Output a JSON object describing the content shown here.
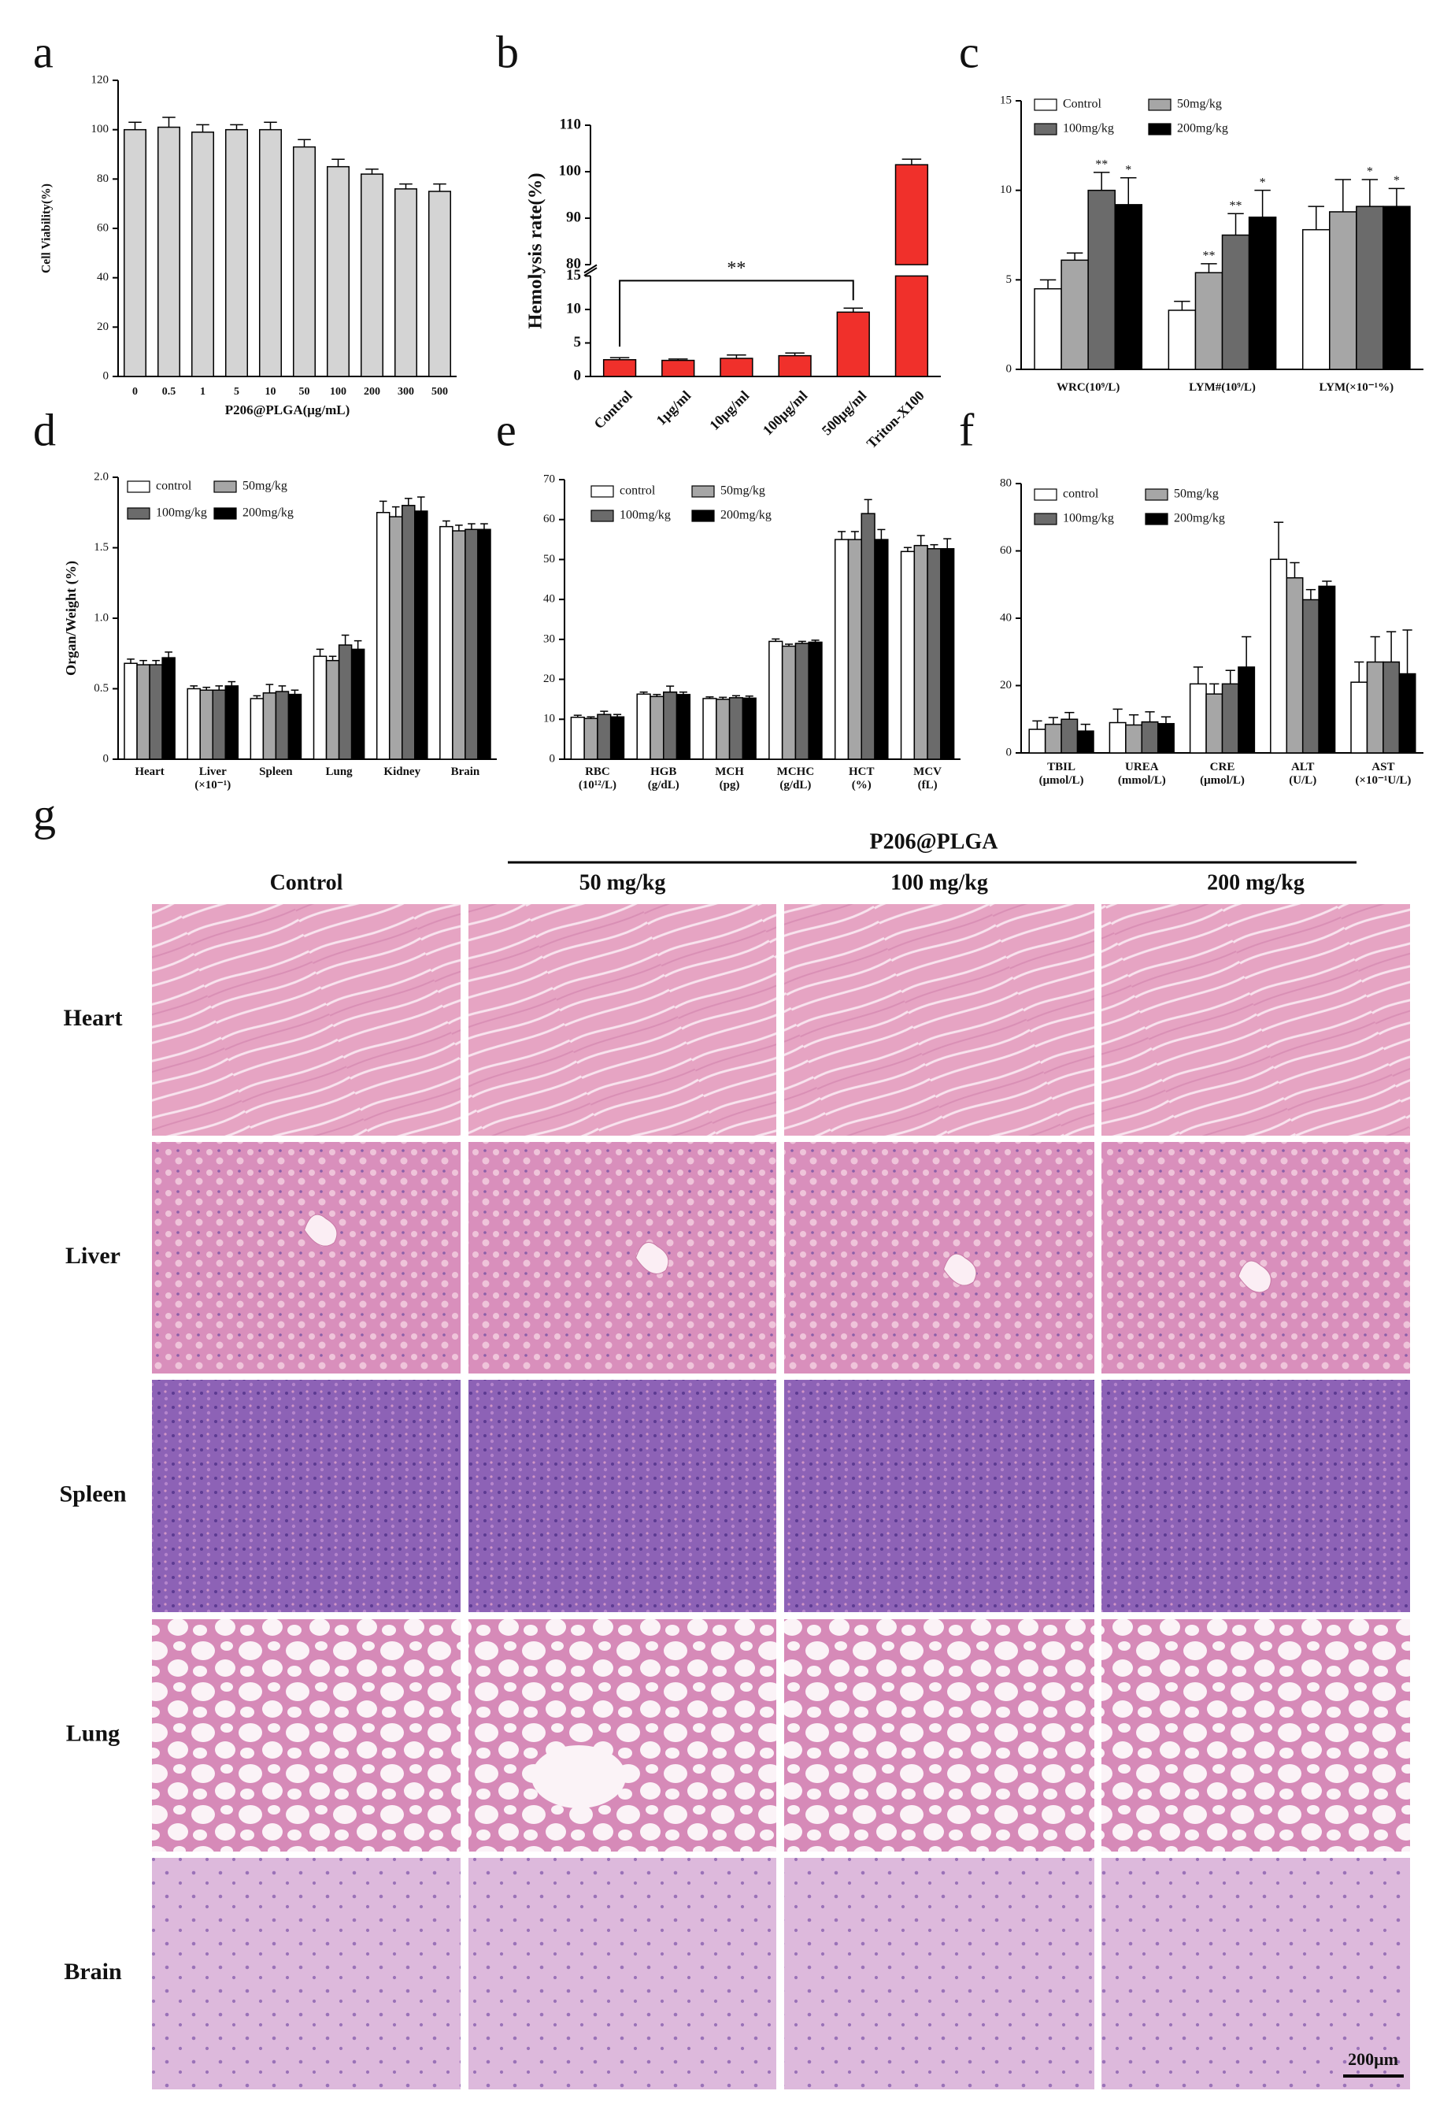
{
  "chart_data": [
    {
      "type": "bar",
      "panel": "a",
      "ylabel": "Cell Viability(%)",
      "xlabel": "P206@PLGA(μg/mL)",
      "categories": [
        "0",
        "0.5",
        "1",
        "5",
        "10",
        "50",
        "100",
        "200",
        "300",
        "500"
      ],
      "values": [
        100,
        101,
        99,
        100,
        100,
        93,
        85,
        82,
        76,
        75
      ],
      "errors": [
        3,
        4,
        3,
        2,
        3,
        3,
        3,
        2,
        2,
        3
      ],
      "color": "#d4d4d4",
      "ylim": [
        0,
        120
      ],
      "yticks": [
        0,
        20,
        40,
        60,
        80,
        100,
        120
      ]
    },
    {
      "type": "bar",
      "panel": "b",
      "ylabel": "Hemolysis rate(%)",
      "categories": [
        "Control",
        "1μg/ml",
        "10μg/ml",
        "100μg/ml",
        "500μg/ml",
        "Triton-X100"
      ],
      "values": [
        2.5,
        2.4,
        2.7,
        3.1,
        9.6,
        101.5
      ],
      "errors": [
        0.3,
        0.2,
        0.5,
        0.4,
        0.6,
        1.2
      ],
      "color": "#f0302b",
      "ylim": [
        0,
        110
      ],
      "y_break": [
        15,
        80
      ],
      "yticks": [
        0,
        5,
        10,
        15,
        80,
        90,
        100,
        110
      ],
      "significance": {
        "label": "**",
        "between": [
          "Control",
          "500μg/ml"
        ]
      }
    },
    {
      "type": "bar",
      "panel": "c",
      "legend": "upper left",
      "categories": [
        "WRC(10⁹/L)",
        "LYM#(10⁹/L)",
        "LYM(×10⁻¹%)"
      ],
      "series": [
        {
          "name": "Control",
          "color": "#ffffff",
          "values": [
            4.5,
            3.3,
            7.8
          ],
          "errors": [
            0.5,
            0.5,
            1.3
          ]
        },
        {
          "name": "50mg/kg",
          "color": "#a6a6a6",
          "values": [
            6.1,
            5.4,
            8.8
          ],
          "errors": [
            0.4,
            0.5,
            1.8
          ],
          "annotations": [
            null,
            "**",
            null
          ]
        },
        {
          "name": "100mg/kg",
          "color": "#6b6b6b",
          "values": [
            10,
            7.5,
            9.1
          ],
          "errors": [
            1,
            1.2,
            1.5
          ],
          "annotations": [
            "**",
            "**",
            "*"
          ]
        },
        {
          "name": "200mg/kg",
          "color": "#000000",
          "values": [
            9.2,
            8.5,
            9.1
          ],
          "errors": [
            1.5,
            1.5,
            1
          ],
          "annotations": [
            "*",
            "*",
            "*"
          ]
        }
      ],
      "ylim": [
        0,
        15
      ],
      "yticks": [
        0,
        5,
        10,
        15
      ]
    },
    {
      "type": "bar",
      "panel": "d",
      "ylabel": "Organ/Weight (%)",
      "legend": "upper left",
      "categories": [
        "Heart",
        "Liver\n(×10⁻¹)",
        "Spleen",
        "Lung",
        "Kidney",
        "Brain"
      ],
      "series": [
        {
          "name": "control",
          "color": "#ffffff",
          "values": [
            0.68,
            0.5,
            0.43,
            0.73,
            1.75,
            1.65
          ],
          "errors": [
            0.03,
            0.02,
            0.02,
            0.05,
            0.08,
            0.04
          ]
        },
        {
          "name": "50mg/kg",
          "color": "#a6a6a6",
          "values": [
            0.67,
            0.49,
            0.47,
            0.7,
            1.72,
            1.62
          ],
          "errors": [
            0.03,
            0.02,
            0.06,
            0.03,
            0.07,
            0.04
          ]
        },
        {
          "name": "100mg/kg",
          "color": "#6b6b6b",
          "values": [
            0.67,
            0.49,
            0.48,
            0.81,
            1.8,
            1.63
          ],
          "errors": [
            0.03,
            0.03,
            0.04,
            0.07,
            0.05,
            0.04
          ]
        },
        {
          "name": "200mg/kg",
          "color": "#000000",
          "values": [
            0.72,
            0.52,
            0.46,
            0.78,
            1.76,
            1.63
          ],
          "errors": [
            0.04,
            0.03,
            0.03,
            0.06,
            0.1,
            0.04
          ]
        }
      ],
      "ylim": [
        0,
        2
      ],
      "yticks": [
        0,
        0.5,
        {
          "value": 1,
          "label": "1.0"
        },
        1.5,
        {
          "value": 2,
          "label": "2.0"
        }
      ]
    },
    {
      "type": "bar",
      "panel": "e",
      "legend": "upper left",
      "categories": [
        "RBC\n(10¹²/L)",
        "HGB\n(g/dL)",
        "MCH\n(pg)",
        "MCHC\n(g/dL)",
        "HCT\n(%)",
        "MCV\n(fL)"
      ],
      "series": [
        {
          "name": "control",
          "color": "#ffffff",
          "values": [
            10.5,
            16.3,
            15.2,
            29.5,
            55,
            52
          ],
          "errors": [
            0.5,
            0.5,
            0.4,
            0.6,
            2,
            1
          ]
        },
        {
          "name": "50mg/kg",
          "color": "#a6a6a6",
          "values": [
            10.2,
            15.7,
            15,
            28.3,
            55,
            53.5
          ],
          "errors": [
            0.4,
            0.5,
            0.5,
            0.5,
            2,
            2.5
          ]
        },
        {
          "name": "100mg/kg",
          "color": "#6b6b6b",
          "values": [
            11.2,
            16.8,
            15.4,
            29,
            61.5,
            52.7
          ],
          "errors": [
            0.8,
            1.5,
            0.5,
            0.5,
            3.5,
            1
          ]
        },
        {
          "name": "200mg/kg",
          "color": "#000000",
          "values": [
            10.6,
            16.2,
            15.3,
            29.3,
            55,
            52.7
          ],
          "errors": [
            0.6,
            0.6,
            0.5,
            0.5,
            2.5,
            2.5
          ]
        }
      ],
      "ylim": [
        0,
        70
      ],
      "yticks": [
        0,
        10,
        20,
        30,
        40,
        50,
        60,
        70
      ]
    },
    {
      "type": "bar",
      "panel": "f",
      "legend": "upper left",
      "categories": [
        "TBIL\n(μmol/L)",
        "UREA\n(mmol/L)",
        "CRE\n(μmol/L)",
        "ALT\n(U/L)",
        "AST\n(×10⁻¹U/L)"
      ],
      "series": [
        {
          "name": "control",
          "color": "#ffffff",
          "values": [
            7,
            9,
            20.5,
            57.5,
            21
          ],
          "errors": [
            2.5,
            4,
            5,
            11,
            6
          ]
        },
        {
          "name": "50mg/kg",
          "color": "#a6a6a6",
          "values": [
            8.5,
            8.3,
            17.5,
            52,
            27
          ],
          "errors": [
            2,
            3,
            3,
            4.5,
            7.5
          ]
        },
        {
          "name": "100mg/kg",
          "color": "#6b6b6b",
          "values": [
            10,
            9.2,
            20.5,
            45.5,
            27
          ],
          "errors": [
            2,
            3,
            4,
            3,
            9
          ]
        },
        {
          "name": "200mg/kg",
          "color": "#000000",
          "values": [
            6.5,
            8.7,
            25.5,
            49.5,
            23.5
          ],
          "errors": [
            2,
            2,
            9,
            1.5,
            13
          ]
        }
      ],
      "ylim": [
        0,
        80
      ],
      "yticks": [
        0,
        20,
        40,
        60,
        80
      ]
    }
  ],
  "histology": {
    "panel": "g",
    "group_label": "P206@PLGA",
    "columns": [
      "Control",
      "50 mg/kg",
      "100 mg/kg",
      "200 mg/kg"
    ],
    "rows": [
      "Heart",
      "Liver",
      "Spleen",
      "Lung",
      "Brain"
    ],
    "scale_bar": "200μm"
  }
}
